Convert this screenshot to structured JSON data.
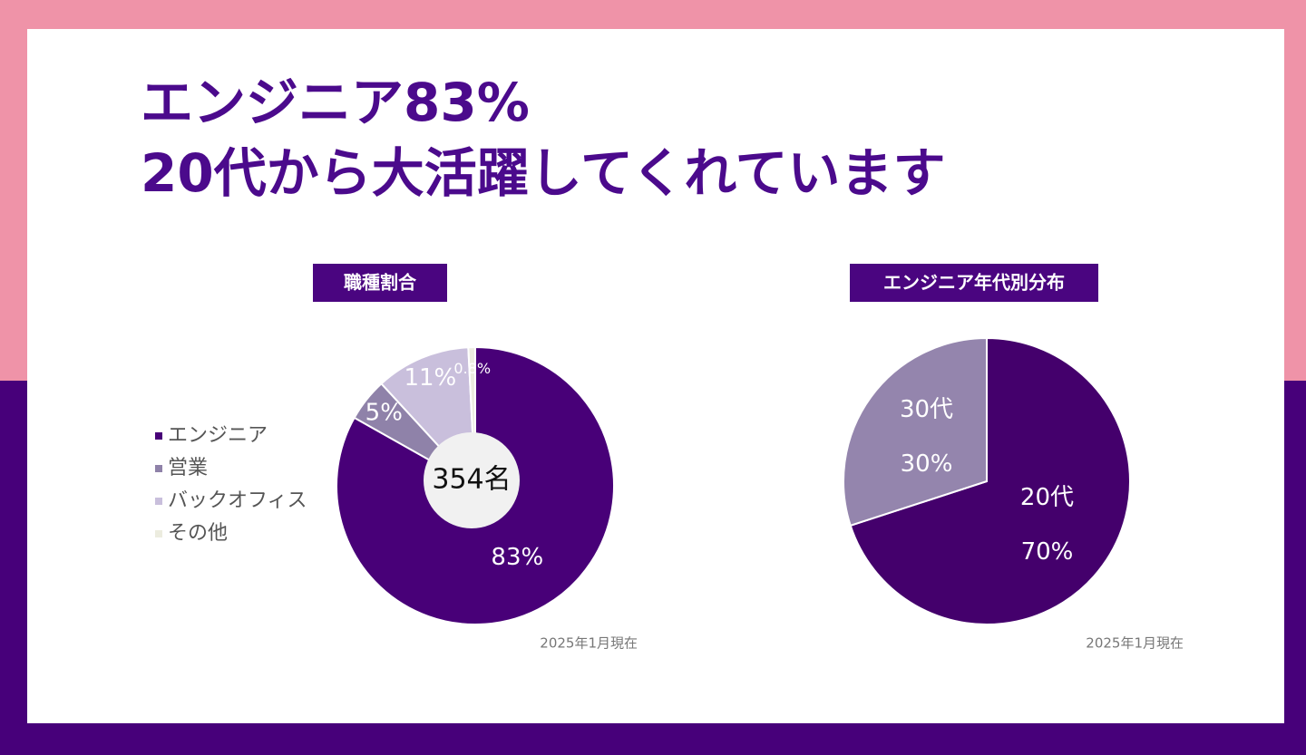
{
  "headline": [
    "エンジニア83%",
    "20代から大活躍してくれています"
  ],
  "chart_data": [
    {
      "type": "pie",
      "title": "職種割合",
      "center_label": "354名",
      "categories": [
        "エンジニア",
        "営業",
        "バックオフィス",
        "その他"
      ],
      "values": [
        83,
        5,
        11,
        0.8
      ],
      "value_labels": [
        "83%",
        "5%",
        "11%",
        "0.8%"
      ],
      "colors": [
        "#480078",
        "#8f82a9",
        "#c9bfdc",
        "#ececdf"
      ],
      "legend": "left",
      "note": "2025年1月現在"
    },
    {
      "type": "pie",
      "title": "エンジニア年代別分布",
      "categories": [
        "20代",
        "30代"
      ],
      "values": [
        70,
        30
      ],
      "value_labels": [
        "70%",
        "30%"
      ],
      "colors": [
        "#44006c",
        "#9485ad"
      ],
      "legend": "none",
      "note": "2025年1月現在"
    }
  ]
}
